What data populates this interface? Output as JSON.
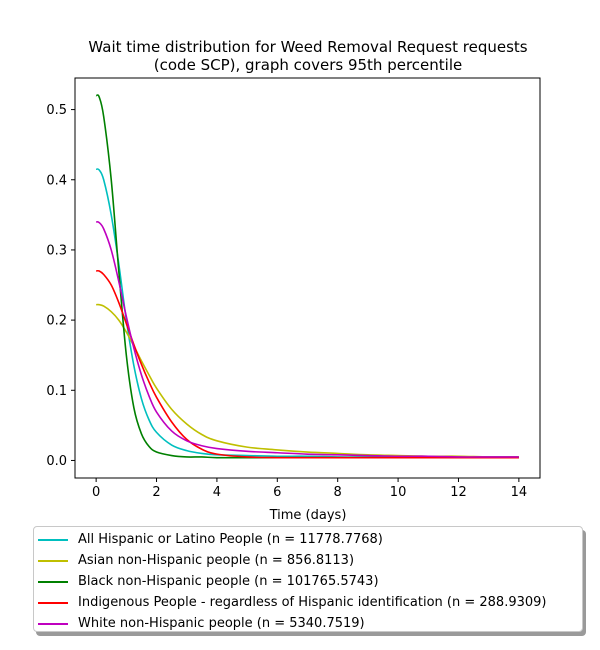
{
  "chart_data": {
    "type": "line",
    "title": "Wait time distribution  for Weed Removal Request  requests",
    "subtitle": "(code SCP), graph covers 95th percentile",
    "xlabel": "Time (days)",
    "ylabel": "",
    "xlim": [
      -0.7,
      14.7
    ],
    "ylim": [
      -0.025,
      0.545
    ],
    "xticks": [
      0,
      2,
      4,
      6,
      8,
      10,
      12,
      14
    ],
    "yticks": [
      0.0,
      0.1,
      0.2,
      0.3,
      0.4,
      0.5
    ],
    "grid": false,
    "legend_position": "bottom",
    "x": [
      0,
      0.1,
      0.25,
      0.5,
      0.75,
      1,
      1.25,
      1.5,
      1.75,
      2,
      2.5,
      3,
      3.5,
      4,
      5,
      6,
      7,
      8,
      9,
      10,
      11,
      12,
      13,
      14
    ],
    "series": [
      {
        "name": "All Hispanic or Latino People (n = 11778.7768)",
        "color": "#00bfbf",
        "values": [
          0.415,
          0.414,
          0.4,
          0.35,
          0.28,
          0.2,
          0.135,
          0.088,
          0.058,
          0.04,
          0.022,
          0.014,
          0.01,
          0.008,
          0.007,
          0.006,
          0.006,
          0.005,
          0.005,
          0.005,
          0.005,
          0.005,
          0.005,
          0.005
        ]
      },
      {
        "name": "Asian non-Hispanic people (n = 856.8113)",
        "color": "#bfbf00",
        "values": [
          0.222,
          0.222,
          0.22,
          0.212,
          0.2,
          0.183,
          0.163,
          0.142,
          0.122,
          0.103,
          0.073,
          0.052,
          0.037,
          0.028,
          0.019,
          0.015,
          0.012,
          0.01,
          0.008,
          0.007,
          0.006,
          0.006,
          0.005,
          0.005
        ]
      },
      {
        "name": "Black non-Hispanic people (n = 101765.5743)",
        "color": "#008000",
        "values": [
          0.52,
          0.518,
          0.49,
          0.4,
          0.27,
          0.15,
          0.075,
          0.038,
          0.02,
          0.012,
          0.007,
          0.005,
          0.005,
          0.004,
          0.004,
          0.004,
          0.004,
          0.004,
          0.004,
          0.004,
          0.004,
          0.004,
          0.004,
          0.004
        ]
      },
      {
        "name": "Indigenous People - regardless of Hispanic identification (n = 288.9309)",
        "color": "#ff0000",
        "values": [
          0.27,
          0.27,
          0.265,
          0.25,
          0.225,
          0.195,
          0.165,
          0.137,
          0.112,
          0.09,
          0.055,
          0.03,
          0.016,
          0.009,
          0.005,
          0.004,
          0.004,
          0.004,
          0.004,
          0.004,
          0.004,
          0.004,
          0.004,
          0.004
        ]
      },
      {
        "name": "White non-Hispanic people (n = 5340.7519)",
        "color": "#bf00bf",
        "values": [
          0.34,
          0.339,
          0.33,
          0.3,
          0.255,
          0.205,
          0.16,
          0.122,
          0.092,
          0.069,
          0.042,
          0.028,
          0.021,
          0.017,
          0.013,
          0.011,
          0.009,
          0.008,
          0.007,
          0.006,
          0.006,
          0.005,
          0.005,
          0.005
        ]
      }
    ]
  }
}
